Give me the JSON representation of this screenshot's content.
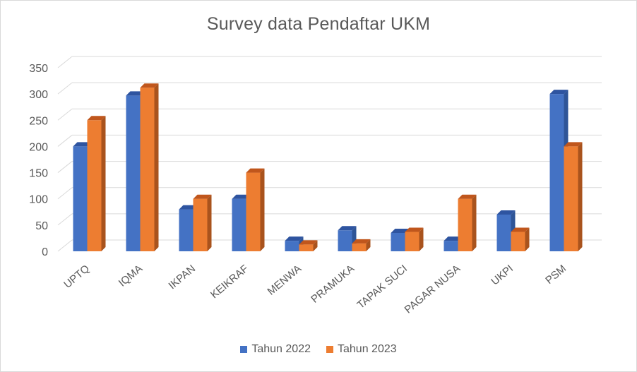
{
  "chart_data": {
    "type": "bar",
    "title": "Survey data Pendaftar UKM",
    "categories": [
      "UPTQ",
      "IQMA",
      "IKPAN",
      "KEIKRAF",
      "MENWA",
      "PRAMUKA",
      "TAPAK SUCI",
      "PAGAR NUSA",
      "UKPI",
      "PSM"
    ],
    "series": [
      {
        "name": "Tahun 2022",
        "values": [
          200,
          297,
          80,
          100,
          20,
          40,
          35,
          20,
          70,
          300
        ],
        "color": "#4472c4",
        "side_color": "#2f5597",
        "top_color": "#2e54a0"
      },
      {
        "name": "Tahun 2023",
        "values": [
          250,
          312,
          100,
          150,
          13,
          15,
          37,
          100,
          37,
          200
        ],
        "color": "#ed7d31",
        "side_color": "#a9531d",
        "top_color": "#c0561c"
      }
    ],
    "ylim": [
      0,
      350
    ],
    "yticks": [
      0,
      50,
      100,
      150,
      200,
      250,
      300,
      350
    ],
    "xlabel": "",
    "ylabel": "",
    "grid": true,
    "legend_position": "bottom",
    "style": "3d-clustered-column"
  }
}
